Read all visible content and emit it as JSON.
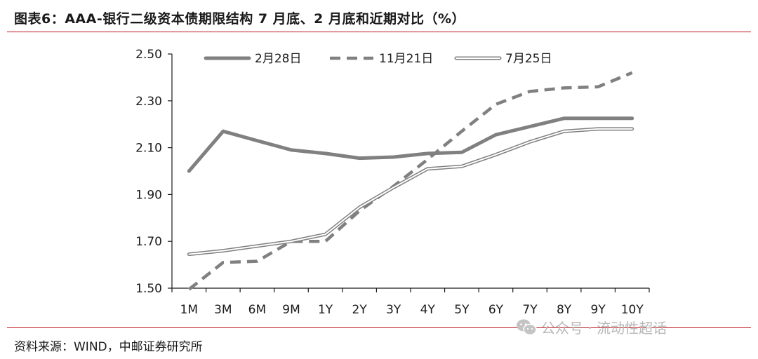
{
  "header": {
    "title": "图表6：AAA-银行二级资本债期限结构 7 月底、2 月底和近期对比（%）"
  },
  "footer": {
    "source": "资料来源：WIND，中邮证券研究所"
  },
  "watermark": {
    "text": "公众号 · 流动性超话",
    "icon": "wechat-icon"
  },
  "chart_data": {
    "type": "line",
    "categories": [
      "1M",
      "3M",
      "6M",
      "9M",
      "1Y",
      "2Y",
      "3Y",
      "4Y",
      "5Y",
      "6Y",
      "7Y",
      "8Y",
      "9Y",
      "10Y"
    ],
    "ylim": [
      1.5,
      2.5
    ],
    "yticks": [
      "1.50",
      "1.70",
      "1.90",
      "2.10",
      "2.30",
      "2.50"
    ],
    "legend_position": "top",
    "grid": false,
    "series": [
      {
        "name": "2月28日",
        "style": "solid-thick",
        "color": "#808080",
        "values": [
          2.0,
          2.17,
          2.13,
          2.09,
          2.075,
          2.055,
          2.06,
          2.075,
          2.08,
          2.155,
          2.19,
          2.225,
          2.225,
          2.225
        ]
      },
      {
        "name": "11月21日",
        "style": "dashed",
        "color": "#808080",
        "values": [
          1.495,
          1.61,
          1.615,
          1.7,
          1.7,
          1.83,
          1.935,
          2.05,
          2.17,
          2.285,
          2.34,
          2.355,
          2.36,
          2.42
        ]
      },
      {
        "name": "7月25日",
        "style": "double",
        "color": "#808080",
        "values": [
          1.645,
          1.66,
          1.68,
          1.7,
          1.73,
          1.845,
          1.93,
          2.01,
          2.02,
          2.07,
          2.125,
          2.17,
          2.18,
          2.18
        ]
      }
    ]
  }
}
